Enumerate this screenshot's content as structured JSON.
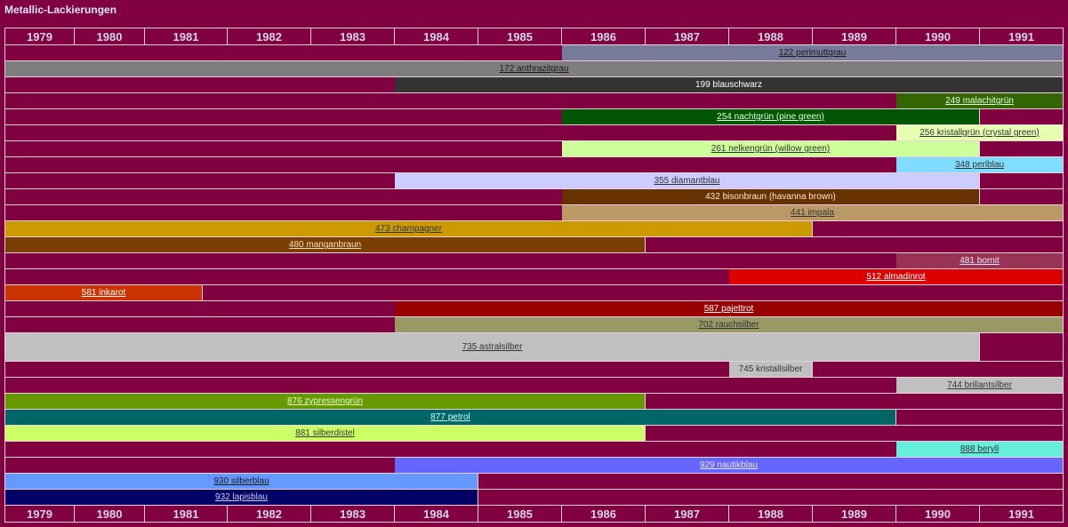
{
  "title": "Metallic-Lackierungen",
  "years": [
    "1979",
    "1980",
    "1981",
    "1982",
    "1983",
    "1984",
    "1985",
    "1986",
    "1987",
    "1988",
    "1989",
    "1990",
    "1991"
  ],
  "rows": [
    {
      "label": "122 perlmuttgrau",
      "start": 7,
      "end": 13,
      "bg": "#777a99",
      "fg": "#1c1c1c"
    },
    {
      "label": "172 anthrazitgrau",
      "start": 0,
      "end": 13,
      "bg": "#7d7d7d",
      "fg": "#1c1c1c"
    },
    {
      "label": "199 blauschwarz",
      "start": 5,
      "end": 13,
      "bg": "#333333",
      "fg": "#ffffff",
      "plain": true
    },
    {
      "label": "249 malachitgrün",
      "start": 11,
      "end": 13,
      "bg": "#336600",
      "fg": "#dfffdf"
    },
    {
      "label": "254 nachtgrün (pine green)",
      "start": 7,
      "end": 12,
      "bg": "#005500",
      "fg": "#dfffdf"
    },
    {
      "label": "256 kristallgrün (crystal green)",
      "start": 11,
      "end": 13,
      "bg": "#e6ffb3",
      "fg": "#333333"
    },
    {
      "label": "261 nelkengrün (willow green)",
      "start": 7,
      "end": 12,
      "bg": "#ccff99",
      "fg": "#333333"
    },
    {
      "label": "348 perlblau",
      "start": 11,
      "end": 13,
      "bg": "#80ddff",
      "fg": "#333333"
    },
    {
      "label": "355 diamantblau",
      "start": 5,
      "end": 12,
      "bg": "#ccccff",
      "fg": "#333333"
    },
    {
      "label": "432 bisonbraun (havanna brown)",
      "start": 7,
      "end": 12,
      "bg": "#663300",
      "fg": "#ffe6cc",
      "plain": true
    },
    {
      "label": "441 impala",
      "start": 7,
      "end": 13,
      "bg": "#bb9966",
      "fg": "#333333"
    },
    {
      "label": "473 champagner",
      "start": 0,
      "end": 10,
      "bg": "#cc9900",
      "fg": "#333333"
    },
    {
      "label": "480 manganbraun",
      "start": 0,
      "end": 8,
      "bg": "#7a3f00",
      "fg": "#ffe0c0"
    },
    {
      "label": "481 bornit",
      "start": 11,
      "end": 13,
      "bg": "#993355",
      "fg": "#e6e6ff"
    },
    {
      "label": "512 almadinrot",
      "start": 9,
      "end": 13,
      "bg": "#dd0000",
      "fg": "#ffffff"
    },
    {
      "label": "581 inkarot",
      "start": 0,
      "end": 2.7,
      "bg": "#cc3300",
      "fg": "#ffffff"
    },
    {
      "label": "587 pajettrot",
      "start": 5,
      "end": 13,
      "bg": "#990000",
      "fg": "#ffffff"
    },
    {
      "label": "702 rauchsilber",
      "start": 5,
      "end": 13,
      "bg": "#999966",
      "fg": "#333333"
    },
    {
      "label": "735 astralsilber",
      "start": 0,
      "end": 12,
      "bg": "#c0c0c0",
      "fg": "#333333",
      "tall": true
    },
    {
      "label": "745 kristallsilber",
      "start": 9,
      "end": 10,
      "bg": "#c0c0c0",
      "fg": "#333333",
      "plain": true
    },
    {
      "label": "744 brillantsilber",
      "start": 11,
      "end": 13,
      "bg": "#c0c0c0",
      "fg": "#333333"
    },
    {
      "label": "876 zypressengrün",
      "start": 0,
      "end": 8,
      "bg": "#669900",
      "fg": "#e6ffcc"
    },
    {
      "label": "877 petrol",
      "start": 0,
      "end": 11,
      "bg": "#006666",
      "fg": "#ccffff"
    },
    {
      "label": "881 silberdistel",
      "start": 0,
      "end": 8,
      "bg": "#ccff66",
      "fg": "#333333"
    },
    {
      "label": "888 beryll",
      "start": 11,
      "end": 13,
      "bg": "#66eedd",
      "fg": "#333333"
    },
    {
      "label": "929 nautikblau",
      "start": 5,
      "end": 13,
      "bg": "#6666ff",
      "fg": "#e6e6ff"
    },
    {
      "label": "930 silberblau",
      "start": 0,
      "end": 6,
      "bg": "#6699ff",
      "fg": "#1c1c1c"
    },
    {
      "label": "932 lapisblau",
      "start": 0,
      "end": 6,
      "bg": "#000066",
      "fg": "#ccccff"
    }
  ]
}
